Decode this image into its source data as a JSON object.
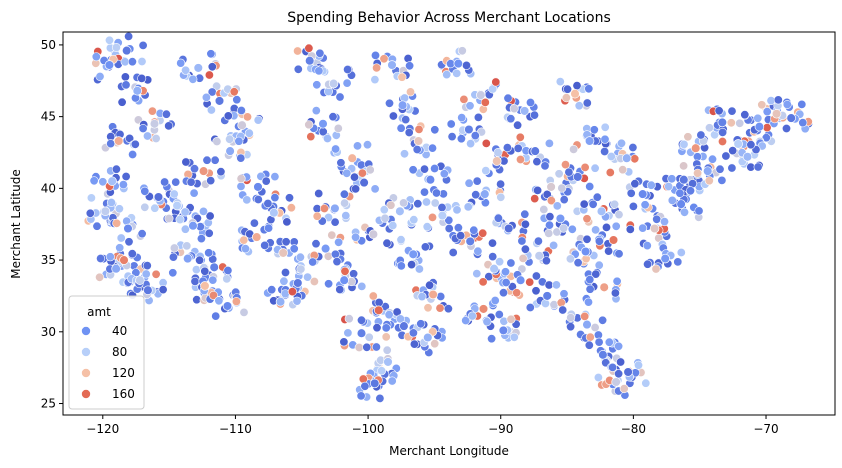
{
  "chart_data": {
    "type": "scatter",
    "title": "Spending Behavior Across Merchant Locations",
    "xlabel": "Merchant Longitude",
    "ylabel": "Merchant Latitude",
    "xlim": [
      -123,
      -64.8
    ],
    "ylim": [
      24.2,
      50.9
    ],
    "xticks": [
      -120,
      -110,
      -100,
      -90,
      -80,
      -70
    ],
    "yticks": [
      25,
      30,
      35,
      40,
      45,
      50
    ],
    "xtick_labels": [
      "−120",
      "−110",
      "−100",
      "−90",
      "−80",
      "−70"
    ],
    "ytick_labels": [
      "25",
      "30",
      "35",
      "40",
      "45",
      "50"
    ],
    "grid": false,
    "hue": "amt",
    "colormap": "coolwarm",
    "legend": {
      "title": "amt",
      "placement": "lower-left",
      "entries": [
        {
          "label": "40",
          "color": "#6f92f3"
        },
        {
          "label": "80",
          "color": "#b7cff9"
        },
        {
          "label": "120",
          "color": "#f5c0a6"
        },
        {
          "label": "160",
          "color": "#e36b55"
        }
      ]
    },
    "colors": {
      "low": "#3b4cc0",
      "mid_low": "#6f92f3",
      "mid": "#b7cff9",
      "mid_high": "#f5c0a6",
      "high": "#e36b55",
      "very_high": "#b40426"
    },
    "points": [
      [
        -119.5,
        48.6,
        40
      ],
      [
        -118.2,
        49.6,
        25
      ],
      [
        -117.4,
        46.8,
        60
      ],
      [
        -116.1,
        44.5,
        90
      ],
      [
        -118.8,
        43.3,
        130
      ],
      [
        -119.3,
        40.5,
        70
      ],
      [
        -118.1,
        37.2,
        35
      ],
      [
        -118.4,
        35.0,
        150
      ],
      [
        -117.2,
        33.6,
        85
      ],
      [
        -119.0,
        34.4,
        55
      ],
      [
        -115.8,
        39.4,
        20
      ],
      [
        -114.4,
        38.8,
        80
      ],
      [
        -113.2,
        37.4,
        45
      ],
      [
        -112.3,
        33.2,
        120
      ],
      [
        -111.6,
        34.5,
        30
      ],
      [
        -112.8,
        48.4,
        65
      ],
      [
        -111.2,
        46.1,
        25
      ],
      [
        -109.5,
        44.4,
        95
      ],
      [
        -110.4,
        42.6,
        55
      ],
      [
        -112.4,
        41.2,
        140
      ],
      [
        -108.3,
        40.1,
        35
      ],
      [
        -107.1,
        38.3,
        75
      ],
      [
        -106.4,
        35.5,
        110
      ],
      [
        -105.3,
        33.4,
        25
      ],
      [
        -106.6,
        32.1,
        60
      ],
      [
        -104.4,
        48.9,
        30
      ],
      [
        -102.6,
        47.3,
        85
      ],
      [
        -103.4,
        44.5,
        45
      ],
      [
        -101.2,
        42.1,
        125
      ],
      [
        -100.3,
        40.4,
        20
      ],
      [
        -102.5,
        38.6,
        55
      ],
      [
        -99.6,
        36.8,
        95
      ],
      [
        -101.8,
        33.6,
        40
      ],
      [
        -99.2,
        31.5,
        160
      ],
      [
        -100.5,
        29.9,
        30
      ],
      [
        -98.5,
        27.9,
        70
      ],
      [
        -99.5,
        26.4,
        25
      ],
      [
        -97.4,
        45.8,
        50
      ],
      [
        -96.2,
        43.3,
        110
      ],
      [
        -95.3,
        40.6,
        35
      ],
      [
        -94.4,
        38.1,
        80
      ],
      [
        -96.6,
        35.4,
        45
      ],
      [
        -95.1,
        32.6,
        130
      ],
      [
        -97.3,
        30.4,
        25
      ],
      [
        -95.5,
        29.6,
        60
      ],
      [
        -93.2,
        48.7,
        40
      ],
      [
        -91.5,
        46.5,
        90
      ],
      [
        -92.4,
        44.1,
        30
      ],
      [
        -90.3,
        41.9,
        115
      ],
      [
        -91.2,
        39.6,
        55
      ],
      [
        -89.4,
        37.2,
        20
      ],
      [
        -90.5,
        34.4,
        75
      ],
      [
        -91.3,
        31.6,
        145
      ],
      [
        -89.8,
        30.1,
        35
      ],
      [
        -88.2,
        45.4,
        65
      ],
      [
        -87.4,
        42.6,
        25
      ],
      [
        -86.2,
        40.1,
        100
      ],
      [
        -85.5,
        37.9,
        45
      ],
      [
        -87.1,
        35.3,
        85
      ],
      [
        -86.5,
        32.5,
        30
      ],
      [
        -84.4,
        46.6,
        120
      ],
      [
        -83.3,
        43.3,
        50
      ],
      [
        -84.2,
        40.8,
        25
      ],
      [
        -82.4,
        38.4,
        70
      ],
      [
        -83.6,
        35.6,
        40
      ],
      [
        -82.2,
        33.1,
        135
      ],
      [
        -83.5,
        30.5,
        55
      ],
      [
        -82.3,
        28.4,
        30
      ],
      [
        -81.3,
        26.5,
        90
      ],
      [
        -80.4,
        27.2,
        20
      ],
      [
        -80.5,
        42.1,
        60
      ],
      [
        -79.3,
        39.6,
        35
      ],
      [
        -78.4,
        37.2,
        105
      ],
      [
        -77.6,
        35.1,
        45
      ],
      [
        -76.2,
        40.6,
        25
      ],
      [
        -75.3,
        42.8,
        140
      ],
      [
        -74.4,
        41.2,
        55
      ],
      [
        -73.3,
        44.6,
        30
      ],
      [
        -72.1,
        43.1,
        80
      ],
      [
        -70.5,
        44.3,
        40
      ],
      [
        -69.2,
        45.2,
        110
      ],
      [
        -68.1,
        44.9,
        25
      ],
      [
        -71.4,
        42.2,
        65
      ],
      [
        -76.4,
        38.9,
        35
      ],
      [
        -81.5,
        36.4,
        155
      ],
      [
        -88.5,
        33.6,
        40
      ],
      [
        -92.3,
        36.3,
        30
      ],
      [
        -97.6,
        38.4,
        70
      ],
      [
        -103.2,
        35.8,
        45
      ],
      [
        -108.4,
        36.6,
        130
      ],
      [
        -113.6,
        35.1,
        50
      ],
      [
        -116.6,
        32.9,
        25
      ],
      [
        -119.8,
        38.4,
        85
      ],
      [
        -110.6,
        31.8,
        35
      ],
      [
        -98.2,
        48.6,
        60
      ]
    ]
  }
}
